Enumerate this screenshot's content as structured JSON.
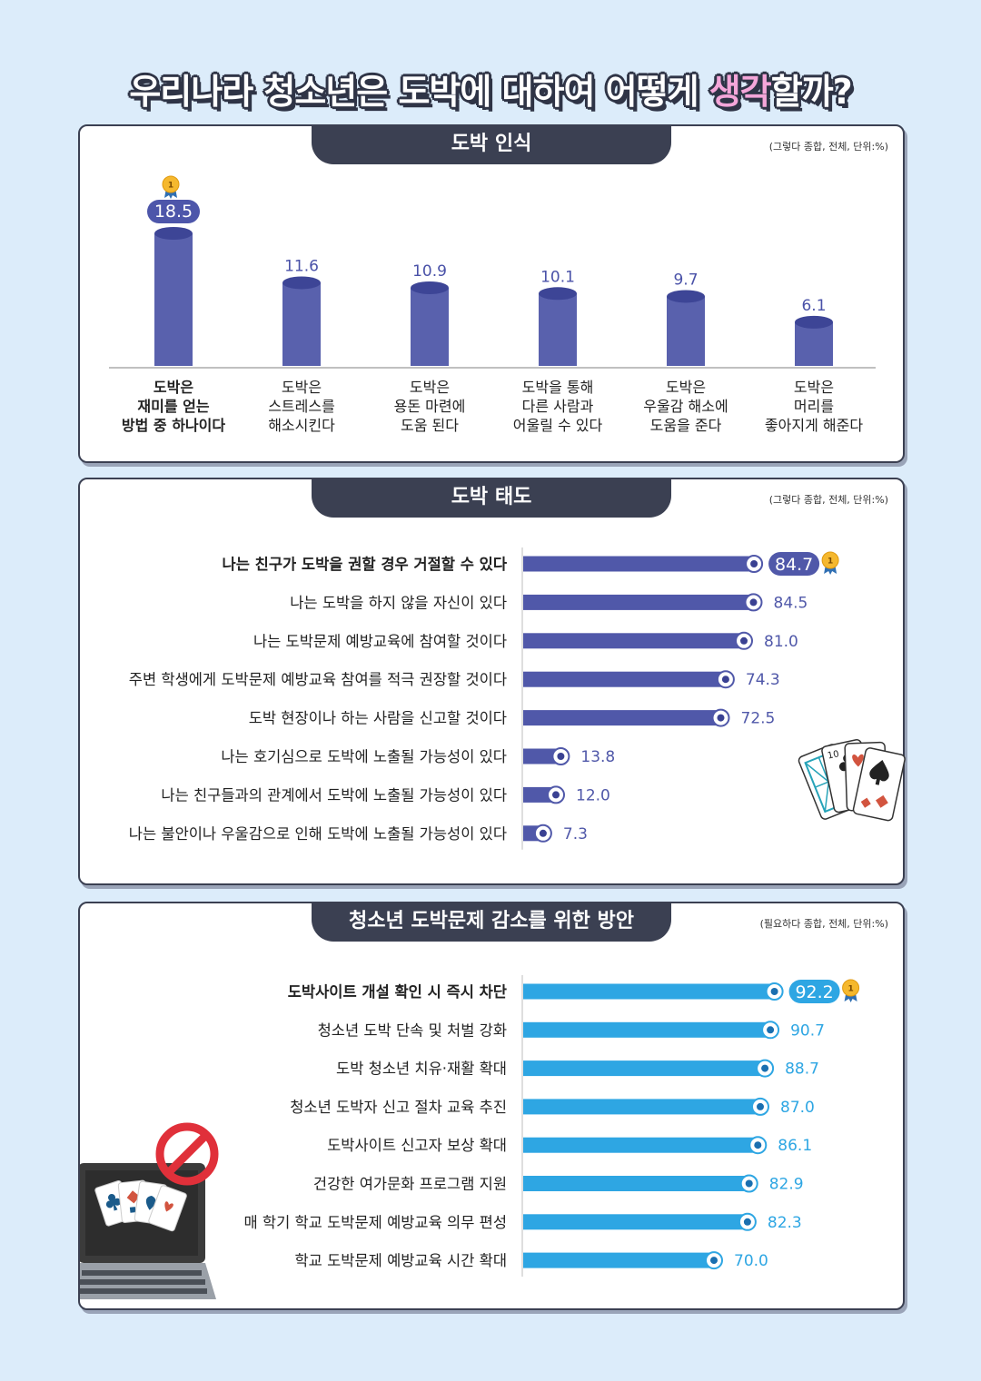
{
  "title": {
    "part1": "우리나라 청소년은 도박에 대하여 어떻게 ",
    "highlight": "생각",
    "part2": "할까?"
  },
  "colors": {
    "background": "#dcecfa",
    "panel_header": "#3b4052",
    "column": "#5961ad",
    "attitude_bar": "#5058a9",
    "solution_bar": "#2ea6e3",
    "highlight_pink": "#f4a6d9",
    "medal": "#f5b82e"
  },
  "medal_label": "1",
  "sections": {
    "perception": {
      "header": "도박 인식",
      "unit_note": "(그렇다 종합, 전체, 단위:%)"
    },
    "attitude": {
      "header": "도박 태도",
      "unit_note": "(그렇다 종합, 전체, 단위:%)"
    },
    "solutions": {
      "header": "청소년 도박문제 감소를 위한 방안",
      "unit_note": "(필요하다 종합, 전체, 단위:%)"
    }
  },
  "chart_data": [
    {
      "type": "bar",
      "orientation": "vertical",
      "title": "도박 인식",
      "subtitle": "(그렇다 종합, 전체, 단위:%)",
      "categories": [
        [
          "도박은",
          "재미를 얻는",
          "방법 중 하나이다"
        ],
        [
          "도박은",
          "스트레스를",
          "해소시킨다"
        ],
        [
          "도박은",
          "용돈 마련에",
          "도움 된다"
        ],
        [
          "도박을 통해",
          "다른 사람과",
          "어울릴 수 있다"
        ],
        [
          "도박은",
          "우울감 해소에",
          "도움을 준다"
        ],
        [
          "도박은",
          "머리를",
          "좋아지게 해준다"
        ]
      ],
      "values": [
        18.5,
        11.6,
        10.9,
        10.1,
        9.7,
        6.1
      ],
      "highlight_index": 0,
      "ylim": [
        0,
        18.5
      ],
      "grid": false,
      "legend": "none"
    },
    {
      "type": "bar",
      "orientation": "horizontal",
      "title": "도박 태도",
      "subtitle": "(그렇다 종합, 전체, 단위:%)",
      "categories": [
        "나는 친구가 도박을 권할 경우 거절할 수 있다",
        "나는 도박을 하지 않을 자신이 있다",
        "나는 도박문제 예방교육에 참여할 것이다",
        "주변 학생에게 도박문제 예방교육 참여를 적극 권장할 것이다",
        "도박 현장이나 하는 사람을 신고할 것이다",
        "나는 호기심으로 도박에 노출될 가능성이 있다",
        "나는 친구들과의 관계에서 도박에 노출될 가능성이 있다",
        "나는 불안이나 우울감으로 인해 도박에 노출될 가능성이 있다"
      ],
      "values": [
        84.7,
        84.5,
        81.0,
        74.3,
        72.5,
        13.8,
        12.0,
        7.3
      ],
      "highlight_index": 0,
      "xlim": [
        0,
        100
      ],
      "grid": false,
      "legend": "none"
    },
    {
      "type": "bar",
      "orientation": "horizontal",
      "title": "청소년 도박문제 감소를 위한 방안",
      "subtitle": "(필요하다 종합, 전체, 단위:%)",
      "categories": [
        "도박사이트 개설 확인 시 즉시 차단",
        "청소년 도박 단속 및 처벌 강화",
        "도박 청소년 치유·재활 확대",
        "청소년 도박자 신고 절차 교육 추진",
        "도박사이트 신고자 보상 확대",
        "건강한 여가문화 프로그램 지원",
        "매 학기 학교 도박문제 예방교육 의무 편성",
        "학교 도박문제 예방교육 시간 확대"
      ],
      "values": [
        92.2,
        90.7,
        88.7,
        87.0,
        86.1,
        82.9,
        82.3,
        70.0
      ],
      "highlight_index": 0,
      "xlim": [
        0,
        100
      ],
      "grid": false,
      "legend": "none"
    }
  ]
}
